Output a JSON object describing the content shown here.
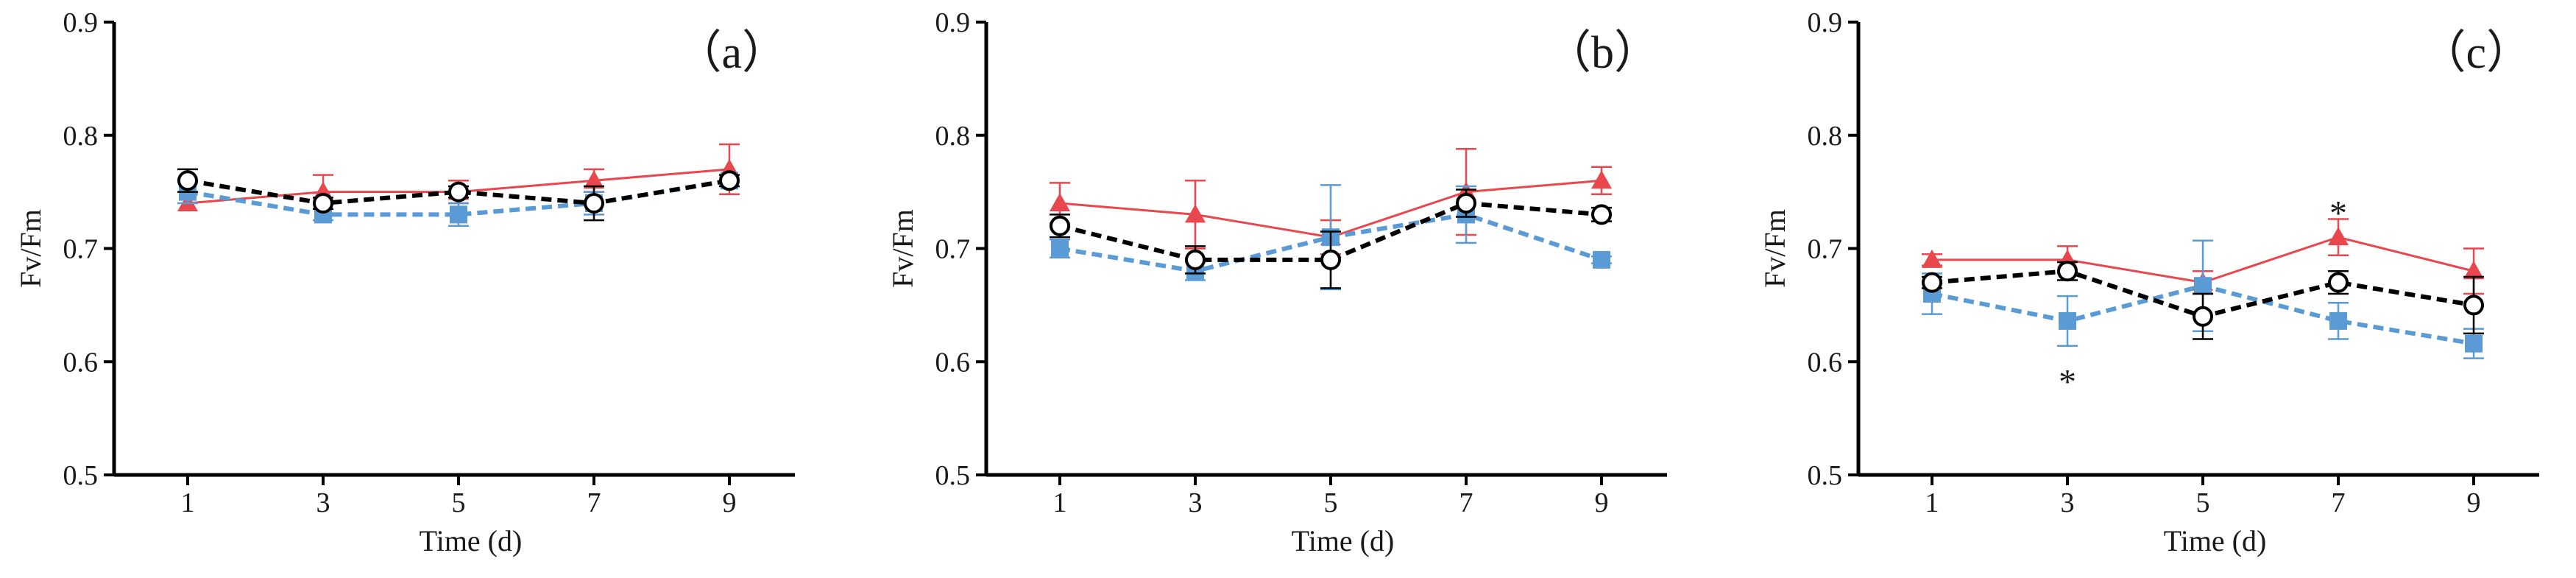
{
  "chart_data": [
    {
      "type": "line",
      "panel_label": "（a）",
      "xlabel": "Time (d)",
      "ylabel": "Fv/Fm",
      "ylim": [
        0.5,
        0.9
      ],
      "x_ticks": [
        "1",
        "3",
        "5",
        "7",
        "9"
      ],
      "y_ticks": [
        "0.5",
        "0.6",
        "0.7",
        "0.8",
        "0.9"
      ],
      "x": [
        1,
        3,
        5,
        7,
        9
      ],
      "series": [
        {
          "name": "red-triangle",
          "color": "#e8474d",
          "marker": "triangle",
          "line": "solid",
          "values": [
            0.74,
            0.75,
            0.75,
            0.76,
            0.77
          ],
          "errors": [
            0.0,
            0.015,
            0.01,
            0.01,
            0.022
          ]
        },
        {
          "name": "blue-square",
          "color": "#5b9bd5",
          "marker": "square",
          "line": "dashed",
          "values": [
            0.75,
            0.73,
            0.73,
            0.74,
            0.76
          ],
          "errors": [
            0.01,
            0.005,
            0.01,
            0.01,
            0.0
          ]
        },
        {
          "name": "black-circle",
          "color": "#000000",
          "marker": "circle",
          "line": "dashed",
          "values": [
            0.76,
            0.74,
            0.75,
            0.74,
            0.76
          ],
          "errors": [
            0.01,
            0.005,
            0.005,
            0.015,
            0.005
          ]
        }
      ],
      "annotations": []
    },
    {
      "type": "line",
      "panel_label": "（b）",
      "xlabel": "Time (d)",
      "ylabel": "Fv/Fm",
      "ylim": [
        0.5,
        0.9
      ],
      "x_ticks": [
        "1",
        "3",
        "5",
        "7",
        "9"
      ],
      "y_ticks": [
        "0.5",
        "0.6",
        "0.7",
        "0.8",
        "0.9"
      ],
      "x": [
        1,
        3,
        5,
        7,
        9
      ],
      "series": [
        {
          "name": "red-triangle",
          "color": "#e8474d",
          "marker": "triangle",
          "line": "solid",
          "values": [
            0.74,
            0.73,
            0.71,
            0.75,
            0.76
          ],
          "errors": [
            0.018,
            0.03,
            0.015,
            0.038,
            0.012
          ]
        },
        {
          "name": "blue-square",
          "color": "#5b9bd5",
          "marker": "square",
          "line": "dashed",
          "values": [
            0.7,
            0.68,
            0.71,
            0.73,
            0.69
          ],
          "errors": [
            0.008,
            0.008,
            0.046,
            0.025,
            0.003
          ]
        },
        {
          "name": "black-circle",
          "color": "#000000",
          "marker": "circle",
          "line": "dashed",
          "values": [
            0.72,
            0.69,
            0.69,
            0.74,
            0.73
          ],
          "errors": [
            0.01,
            0.012,
            0.025,
            0.012,
            0.006
          ]
        }
      ],
      "annotations": []
    },
    {
      "type": "line",
      "panel_label": "（c）",
      "xlabel": "Time (d)",
      "ylabel": "Fv/Fm",
      "ylim": [
        0.5,
        0.9
      ],
      "x_ticks": [
        "1",
        "3",
        "5",
        "7",
        "9"
      ],
      "y_ticks": [
        "0.5",
        "0.6",
        "0.7",
        "0.8",
        "0.9"
      ],
      "x": [
        1,
        3,
        5,
        7,
        9
      ],
      "series": [
        {
          "name": "red-triangle",
          "color": "#e8474d",
          "marker": "triangle",
          "line": "solid",
          "values": [
            0.69,
            0.69,
            0.67,
            0.71,
            0.68
          ],
          "errors": [
            0.005,
            0.012,
            0.01,
            0.016,
            0.02
          ]
        },
        {
          "name": "blue-square",
          "color": "#5b9bd5",
          "marker": "square",
          "line": "dashed",
          "values": [
            0.66,
            0.636,
            0.667,
            0.636,
            0.616
          ],
          "errors": [
            0.018,
            0.022,
            0.04,
            0.016,
            0.013
          ]
        },
        {
          "name": "black-circle",
          "color": "#000000",
          "marker": "circle",
          "line": "dashed",
          "values": [
            0.67,
            0.68,
            0.64,
            0.67,
            0.65
          ],
          "errors": [
            0.005,
            0.008,
            0.02,
            0.01,
            0.025
          ]
        }
      ],
      "annotations": [
        {
          "text": "*",
          "x": 3,
          "y": 0.59
        },
        {
          "text": "*",
          "x": 7,
          "y": 0.739
        }
      ]
    }
  ]
}
